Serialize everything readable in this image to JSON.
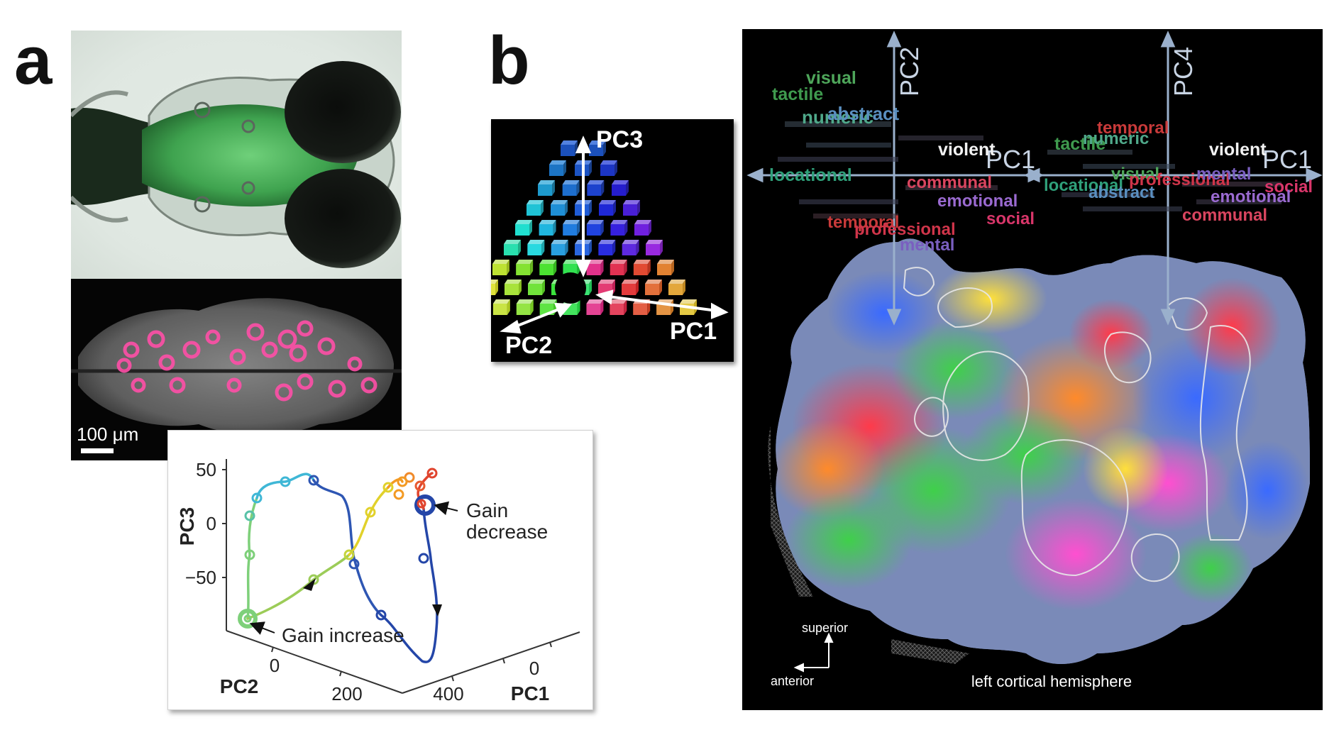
{
  "panel_a": {
    "letter": "a",
    "scale_bar_label": "100 μm",
    "trajectory_plot": {
      "axis_pc3_label": "PC3",
      "axis_pc2_label": "PC2",
      "axis_pc1_label": "PC1",
      "pc3_ticks": [
        "50",
        "0",
        "−50"
      ],
      "pc2_ticks": [
        "0",
        "200"
      ],
      "pc1_ticks": [
        "400",
        "0"
      ],
      "annotation_gain_decrease_line1": "Gain",
      "annotation_gain_decrease_line2": "decrease",
      "annotation_gain_increase": "Gain increase"
    }
  },
  "panel_b": {
    "letter": "b",
    "cube": {
      "label_pc3": "PC3",
      "label_pc2": "PC2",
      "label_pc1": "PC1"
    },
    "cortex": {
      "axis_pc2": "PC2",
      "axis_pc4": "PC4",
      "axis_pc1_left": "PC1",
      "axis_pc1_right": "PC1",
      "words_left": [
        {
          "text": "visual",
          "color": "#4ea65a"
        },
        {
          "text": "tactile",
          "color": "#3f9a4e"
        },
        {
          "text": "numeric",
          "color": "#4fa88a"
        },
        {
          "text": "abstract",
          "color": "#5a8fc0"
        },
        {
          "text": "violent",
          "color": "#f2f2f2"
        },
        {
          "text": "locational",
          "color": "#2fa07a"
        },
        {
          "text": "communal",
          "color": "#d9455f"
        },
        {
          "text": "emotional",
          "color": "#9a6ad0"
        },
        {
          "text": "social",
          "color": "#d9366a"
        },
        {
          "text": "temporal",
          "color": "#c83a3a"
        },
        {
          "text": "professional",
          "color": "#d0354a"
        },
        {
          "text": "mental",
          "color": "#7a5fc0"
        }
      ],
      "words_right": [
        {
          "text": "temporal",
          "color": "#c83a3a"
        },
        {
          "text": "tactile",
          "color": "#3f9a4e"
        },
        {
          "text": "numeric",
          "color": "#4fa88a"
        },
        {
          "text": "violent",
          "color": "#f2f2f2"
        },
        {
          "text": "visual",
          "color": "#4ea65a"
        },
        {
          "text": "locational",
          "color": "#2fa07a"
        },
        {
          "text": "professional",
          "color": "#d0354a"
        },
        {
          "text": "mental",
          "color": "#7a5fc0"
        },
        {
          "text": "social",
          "color": "#d9366a"
        },
        {
          "text": "abstract",
          "color": "#5a8fc0"
        },
        {
          "text": "emotional",
          "color": "#9a6ad0"
        },
        {
          "text": "communal",
          "color": "#d9455f"
        }
      ],
      "orientation_superior": "superior",
      "orientation_anterior": "anterior",
      "hemisphere_label": "left cortical hemisphere"
    }
  }
}
